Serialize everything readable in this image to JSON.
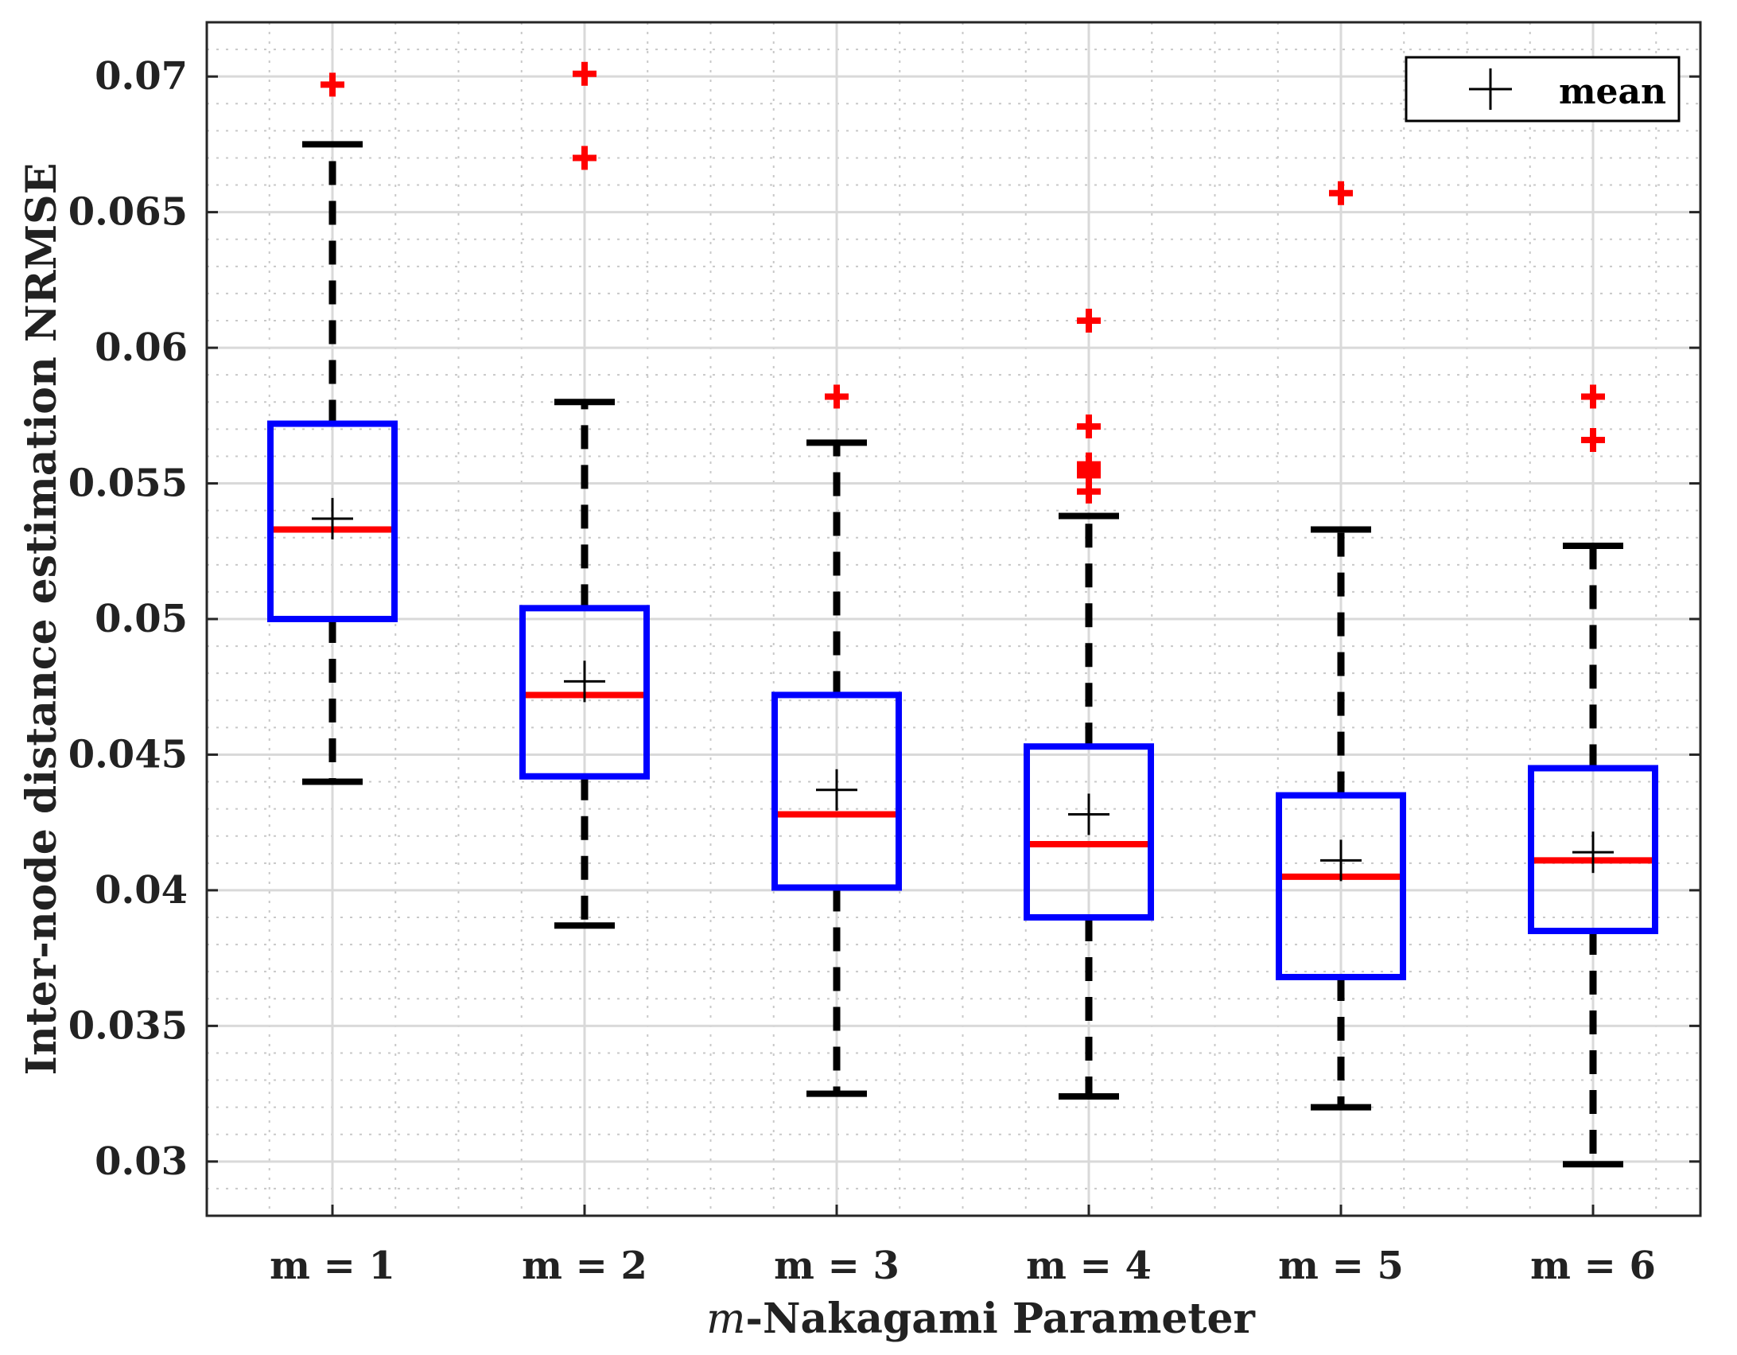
{
  "chart_data": {
    "type": "box",
    "title": "",
    "xlabel_italic": "m",
    "xlabel_rest": "-Nakagami Parameter",
    "ylabel": "Inter-node distance estimation NRMSE",
    "ylim": [
      0.028,
      0.072
    ],
    "yticks": [
      "0.03",
      "0.035",
      "0.04",
      "0.045",
      "0.05",
      "0.055",
      "0.06",
      "0.065",
      "0.07"
    ],
    "ytick_values": [
      0.03,
      0.035,
      0.04,
      0.045,
      0.05,
      0.055,
      0.06,
      0.065,
      0.07
    ],
    "categories": [
      "m = 1",
      "m = 2",
      "m = 3",
      "m = 4",
      "m = 5",
      "m = 6"
    ],
    "grid": true,
    "legend": {
      "label": "mean",
      "placement": "top-right"
    },
    "colors": {
      "box": "#0000ff",
      "median": "#ff0000",
      "whisker": "#000000",
      "outlier": "#ff0000",
      "mean": "#000000"
    },
    "boxes": [
      {
        "category": "m = 1",
        "lower_whisker": 0.044,
        "q1": 0.05,
        "median": 0.0533,
        "q3": 0.0572,
        "upper_whisker": 0.0675,
        "mean": 0.0537,
        "outliers": [
          0.0697
        ]
      },
      {
        "category": "m = 2",
        "lower_whisker": 0.0387,
        "q1": 0.0442,
        "median": 0.0472,
        "q3": 0.0504,
        "upper_whisker": 0.058,
        "mean": 0.0477,
        "outliers": [
          0.067,
          0.0701
        ]
      },
      {
        "category": "m = 3",
        "lower_whisker": 0.0325,
        "q1": 0.0401,
        "median": 0.0428,
        "q3": 0.0472,
        "upper_whisker": 0.0565,
        "mean": 0.0437,
        "outliers": [
          0.0582
        ]
      },
      {
        "category": "m = 4",
        "lower_whisker": 0.0324,
        "q1": 0.039,
        "median": 0.0417,
        "q3": 0.0453,
        "upper_whisker": 0.0538,
        "mean": 0.0428,
        "outliers": [
          0.0547,
          0.0553,
          0.0555,
          0.0557,
          0.0571,
          0.061
        ]
      },
      {
        "category": "m = 5",
        "lower_whisker": 0.032,
        "q1": 0.0368,
        "median": 0.0405,
        "q3": 0.0435,
        "upper_whisker": 0.0533,
        "mean": 0.0411,
        "outliers": [
          0.0657
        ]
      },
      {
        "category": "m = 6",
        "lower_whisker": 0.0299,
        "q1": 0.0385,
        "median": 0.0411,
        "q3": 0.0445,
        "upper_whisker": 0.0527,
        "mean": 0.0414,
        "outliers": [
          0.0566,
          0.0582
        ]
      }
    ]
  }
}
